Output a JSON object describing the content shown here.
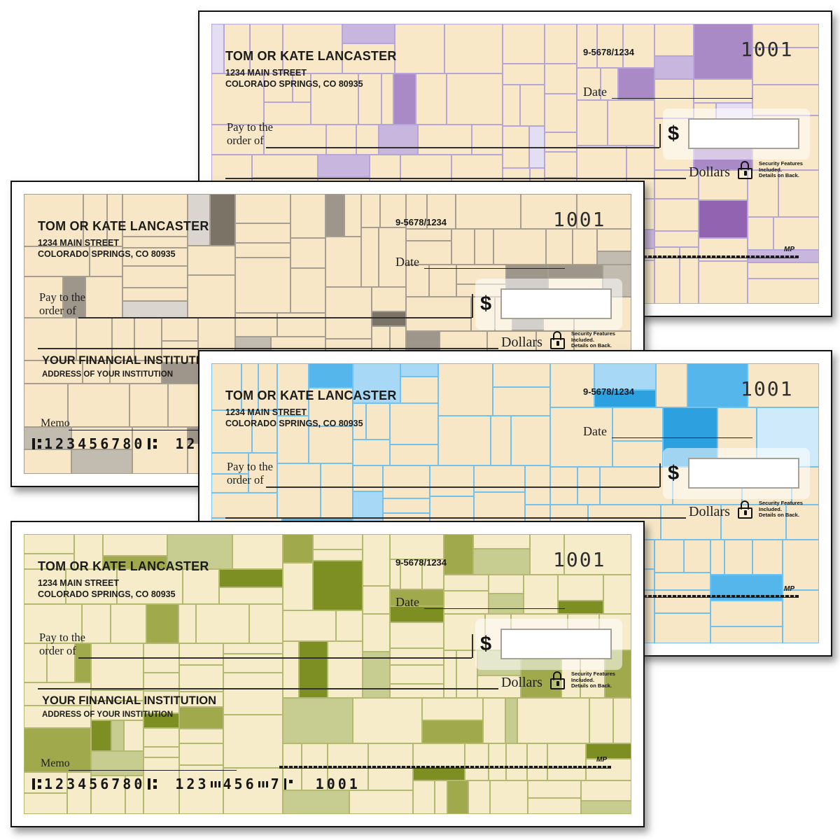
{
  "shared": {
    "payor_name": "TOM OR KATE LANCASTER",
    "payor_address_line1": "1234 MAIN STREET",
    "payor_address_line2": "COLORADO SPRINGS, CO 80935",
    "routing_fraction": "9-5678/1234",
    "check_number": "1001",
    "date_label": "Date",
    "pay_to_line1": "Pay to the",
    "pay_to_line2": "order of",
    "dollar_sign": "$",
    "dollars_label": "Dollars",
    "security_line1": "Security Features",
    "security_line2": "Included.",
    "security_line3": "Details on Back.",
    "institution_name": "YOUR FINANCIAL INSTITUTION",
    "institution_address": "ADDRESS OF YOUR INSTITUTION",
    "memo_label": "Memo",
    "mp_mark": "MP",
    "micr_routing": "123456780",
    "micr_account_part1": "123",
    "micr_account_part2": "456",
    "micr_account_part3": "7",
    "micr_check_number": "1001"
  },
  "checks": [
    {
      "name": "purple",
      "line_color": "#b5a6d6",
      "cream": "#f8e8c7",
      "tile_light": "#c9b6de",
      "tile_medium": "#a98ac7",
      "tile_dark": "#9263b0",
      "tile_pale": "#e4def2"
    },
    {
      "name": "gray",
      "line_color": "#a59e91",
      "cream": "#f7e7c6",
      "tile_light": "#c1bbb0",
      "tile_medium": "#9e968a",
      "tile_dark": "#7b7365",
      "tile_pale": "#dad6cf"
    },
    {
      "name": "blue",
      "line_color": "#72c1ee",
      "cream": "#f7e7c6",
      "tile_light": "#a7d8f6",
      "tile_medium": "#55b6ec",
      "tile_dark": "#2da0e0",
      "tile_pale": "#cfeafb"
    },
    {
      "name": "green",
      "line_color": "#b3b96e",
      "cream": "#f6ecca",
      "tile_light": "#c7cd90",
      "tile_medium": "#a0aa4c",
      "tile_dark": "#7d8e22",
      "tile_pale": "#dbdfb4"
    }
  ]
}
